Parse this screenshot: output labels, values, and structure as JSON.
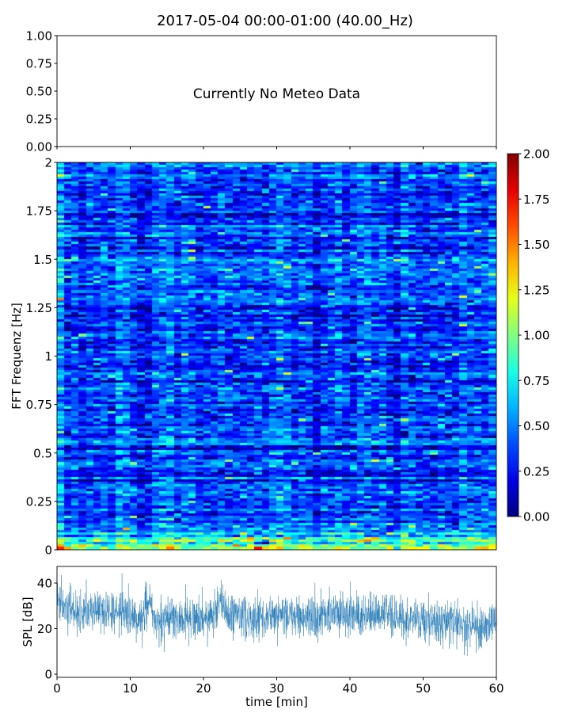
{
  "title": "2017-05-04 00:00-01:00 (40.00_Hz)",
  "chart_data": [
    {
      "type": "line",
      "panel": "meteo",
      "annotation": "Currently No Meteo Data",
      "ylim": [
        0,
        1
      ],
      "yticks": [
        "0.00",
        "0.25",
        "0.50",
        "0.75",
        "1.00"
      ],
      "xlim": [
        0,
        60
      ],
      "xticks": [
        0,
        10,
        20,
        30,
        40,
        50,
        60
      ]
    },
    {
      "type": "heatmap",
      "panel": "spectrogram",
      "ylabel": "FFT Frequenz [Hz]",
      "ylim": [
        0,
        2
      ],
      "yticks": [
        "0",
        "0.25",
        "0.5",
        "0.75",
        "1",
        "1.25",
        "1.5",
        "1.75",
        "2"
      ],
      "xlim": [
        0,
        60
      ],
      "time_bins": 60,
      "freq_bins": 160,
      "colormap": "jet",
      "typical_value": 0.35,
      "low_freq_value_below_0_15Hz": 1.0,
      "colorbar": {
        "range": [
          0,
          2
        ],
        "ticks": [
          "0.00",
          "0.25",
          "0.50",
          "0.75",
          "1.00",
          "1.25",
          "1.50",
          "1.75",
          "2.00"
        ]
      }
    },
    {
      "type": "line",
      "panel": "spl",
      "ylabel": "SPL [dB]",
      "xlabel": "time [min]",
      "xlim": [
        0,
        60
      ],
      "ylim": [
        -1.4,
        47.3
      ],
      "xticks": [
        "0",
        "10",
        "20",
        "30",
        "40",
        "50",
        "60"
      ],
      "yticks": [
        "0",
        "20",
        "40"
      ],
      "color": "#1f77b4",
      "minute_mean_db": [
        31,
        29,
        28,
        27,
        27,
        27,
        27,
        27,
        27,
        26,
        25,
        23,
        31,
        24,
        24,
        24,
        24,
        25,
        25,
        25,
        25,
        26,
        32,
        26,
        25,
        25,
        25,
        25,
        25,
        26,
        26,
        26,
        26,
        26,
        26,
        26,
        26,
        26,
        26,
        26,
        26,
        26,
        26,
        26,
        27,
        26,
        25,
        25,
        24,
        24,
        23,
        22,
        22,
        22,
        22,
        21,
        22,
        22,
        21,
        22
      ],
      "noise_spread_db": 6
    }
  ]
}
